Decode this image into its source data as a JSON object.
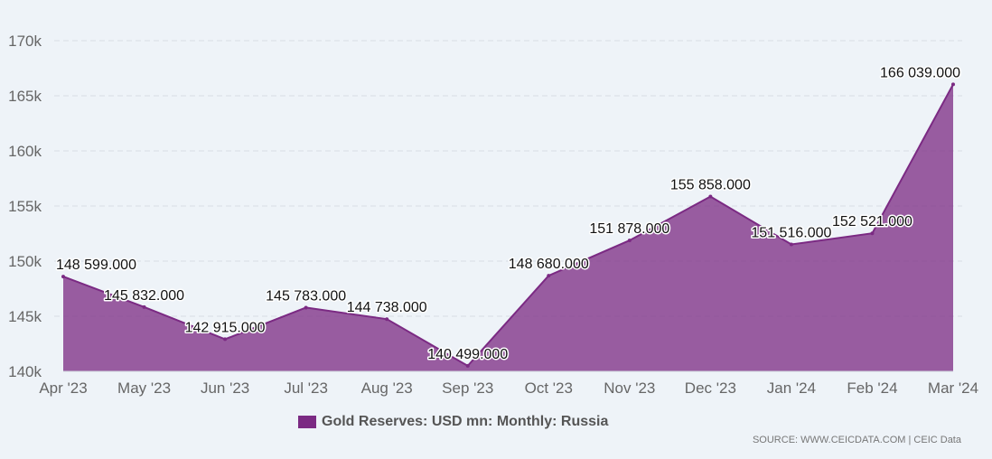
{
  "chart_data": {
    "type": "area",
    "categories": [
      "Apr '23",
      "May '23",
      "Jun '23",
      "Jul '23",
      "Aug '23",
      "Sep '23",
      "Oct '23",
      "Nov '23",
      "Dec '23",
      "Jan '24",
      "Feb '24",
      "Mar '24"
    ],
    "series": [
      {
        "name": "Gold Reserves: USD mn: Monthly: Russia",
        "values": [
          148599,
          145832,
          142915,
          145783,
          144738,
          140499,
          148680,
          151878,
          155858,
          151516,
          152521,
          166039
        ],
        "labels": [
          "148 599.000",
          "145 832.000",
          "142 915.000",
          "145 783.000",
          "144 738.000",
          "140 499.000",
          "148 680.000",
          "151 878.000",
          "155 858.000",
          "151 516.000",
          "152 521.000",
          "166 039.000"
        ],
        "color": "#7b2a83"
      }
    ],
    "y_ticks": [
      140000,
      145000,
      150000,
      155000,
      160000,
      165000,
      170000
    ],
    "y_tick_labels": [
      "140k",
      "145k",
      "150k",
      "155k",
      "160k",
      "165k",
      "170k"
    ],
    "ylim": [
      140000,
      170000
    ],
    "grid": true,
    "legend": "bottom-center"
  },
  "source_text": "SOURCE: WWW.CEICDATA.COM | CEIC Data",
  "colors": {
    "area_fill": "#7b2a83",
    "grid": "#d8dde3",
    "background": "#eef3f8"
  }
}
